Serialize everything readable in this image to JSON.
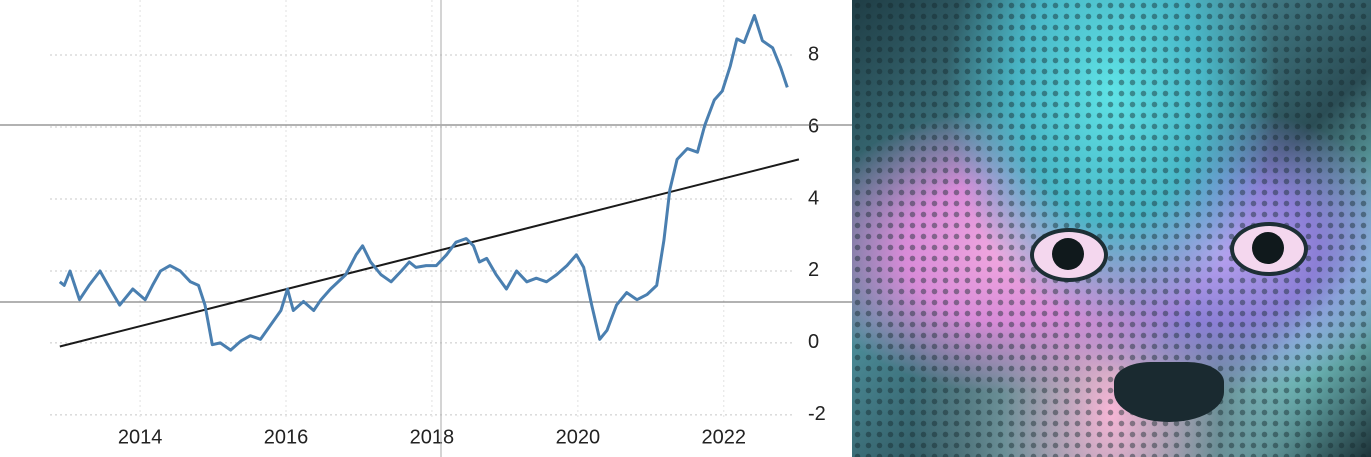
{
  "chart_data": {
    "type": "line",
    "xlim": [
      2012.08,
      2023.73
    ],
    "xticks": [
      2014,
      2016,
      2018,
      2020,
      2022
    ],
    "ylim": [
      -3.17,
      9.53
    ],
    "yticks": [
      -2,
      0,
      2,
      4,
      6,
      8
    ],
    "grid": true,
    "series": [
      {
        "color": "#4a7fb0",
        "x": [
          2012.9,
          2012.96,
          2013.04,
          2013.17,
          2013.3,
          2013.45,
          2013.59,
          2013.72,
          2013.9,
          2014.07,
          2014.17,
          2014.28,
          2014.41,
          2014.55,
          2014.69,
          2014.8,
          2014.89,
          2014.99,
          2015.1,
          2015.24,
          2015.38,
          2015.51,
          2015.65,
          2015.79,
          2015.93,
          2016.02,
          2016.1,
          2016.24,
          2016.38,
          2016.48,
          2016.61,
          2016.82,
          2016.96,
          2017.05,
          2017.16,
          2017.3,
          2017.44,
          2017.58,
          2017.69,
          2017.78,
          2017.92,
          2018.06,
          2018.2,
          2018.33,
          2018.47,
          2018.57,
          2018.65,
          2018.75,
          2018.88,
          2019.02,
          2019.16,
          2019.3,
          2019.43,
          2019.57,
          2019.71,
          2019.85,
          2019.98,
          2020.08,
          2020.19,
          2020.3,
          2020.4,
          2020.53,
          2020.67,
          2020.81,
          2020.95,
          2021.08,
          2021.18,
          2021.26,
          2021.36,
          2021.5,
          2021.64,
          2021.74,
          2021.87,
          2021.98,
          2022.09,
          2022.18,
          2022.28,
          2022.42,
          2022.53,
          2022.67,
          2022.78,
          2022.87
        ],
        "values": [
          1.7,
          1.6,
          2.0,
          1.2,
          1.6,
          2.0,
          1.5,
          1.05,
          1.5,
          1.2,
          1.6,
          2.0,
          2.15,
          2.0,
          1.7,
          1.6,
          1.05,
          -0.05,
          0.0,
          -0.2,
          0.05,
          0.2,
          0.1,
          0.5,
          0.9,
          1.5,
          0.9,
          1.15,
          0.9,
          1.2,
          1.5,
          1.9,
          2.45,
          2.7,
          2.25,
          1.9,
          1.7,
          2.0,
          2.25,
          2.1,
          2.15,
          2.15,
          2.45,
          2.8,
          2.9,
          2.7,
          2.25,
          2.35,
          1.9,
          1.5,
          2.0,
          1.7,
          1.8,
          1.7,
          1.9,
          2.15,
          2.45,
          2.1,
          1.05,
          0.1,
          0.35,
          1.05,
          1.4,
          1.2,
          1.35,
          1.6,
          2.85,
          4.25,
          5.1,
          5.4,
          5.3,
          6.05,
          6.75,
          7.0,
          7.7,
          8.45,
          8.35,
          9.1,
          8.4,
          8.2,
          7.65,
          7.1
        ]
      },
      {
        "color": "#1a1a1a",
        "x": [
          2012.9,
          2023.03
        ],
        "values": [
          -0.1,
          5.1
        ]
      }
    ]
  }
}
